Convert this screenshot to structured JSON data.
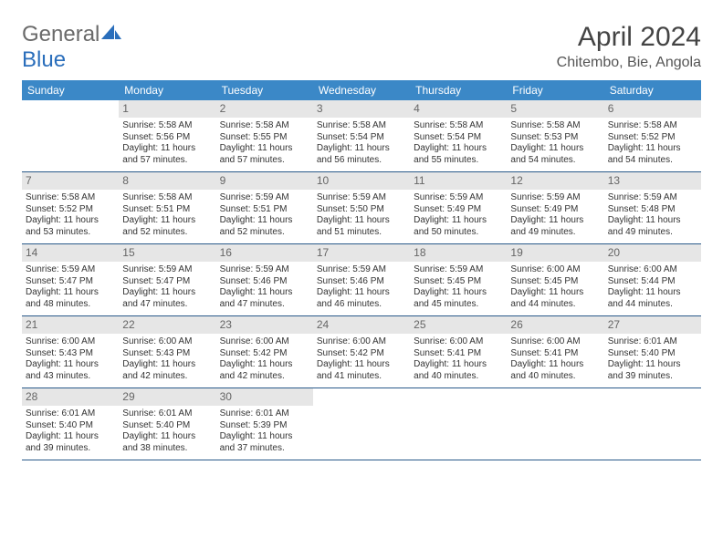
{
  "brand": {
    "part1": "General",
    "part2": "Blue"
  },
  "title": "April 2024",
  "location": "Chitembo, Bie, Angola",
  "colors": {
    "header_bg": "#3b88c7",
    "header_text": "#ffffff",
    "daynum_bg": "#e6e6e6",
    "daynum_text": "#666666",
    "rule": "#2a5a8a",
    "body_text": "#333333",
    "brand_gray": "#555555",
    "brand_blue": "#2a6ebb"
  },
  "day_names": [
    "Sunday",
    "Monday",
    "Tuesday",
    "Wednesday",
    "Thursday",
    "Friday",
    "Saturday"
  ],
  "weeks": [
    [
      null,
      {
        "n": "1",
        "sr": "5:58 AM",
        "ss": "5:56 PM",
        "dl": "11 hours and 57 minutes."
      },
      {
        "n": "2",
        "sr": "5:58 AM",
        "ss": "5:55 PM",
        "dl": "11 hours and 57 minutes."
      },
      {
        "n": "3",
        "sr": "5:58 AM",
        "ss": "5:54 PM",
        "dl": "11 hours and 56 minutes."
      },
      {
        "n": "4",
        "sr": "5:58 AM",
        "ss": "5:54 PM",
        "dl": "11 hours and 55 minutes."
      },
      {
        "n": "5",
        "sr": "5:58 AM",
        "ss": "5:53 PM",
        "dl": "11 hours and 54 minutes."
      },
      {
        "n": "6",
        "sr": "5:58 AM",
        "ss": "5:52 PM",
        "dl": "11 hours and 54 minutes."
      }
    ],
    [
      {
        "n": "7",
        "sr": "5:58 AM",
        "ss": "5:52 PM",
        "dl": "11 hours and 53 minutes."
      },
      {
        "n": "8",
        "sr": "5:58 AM",
        "ss": "5:51 PM",
        "dl": "11 hours and 52 minutes."
      },
      {
        "n": "9",
        "sr": "5:59 AM",
        "ss": "5:51 PM",
        "dl": "11 hours and 52 minutes."
      },
      {
        "n": "10",
        "sr": "5:59 AM",
        "ss": "5:50 PM",
        "dl": "11 hours and 51 minutes."
      },
      {
        "n": "11",
        "sr": "5:59 AM",
        "ss": "5:49 PM",
        "dl": "11 hours and 50 minutes."
      },
      {
        "n": "12",
        "sr": "5:59 AM",
        "ss": "5:49 PM",
        "dl": "11 hours and 49 minutes."
      },
      {
        "n": "13",
        "sr": "5:59 AM",
        "ss": "5:48 PM",
        "dl": "11 hours and 49 minutes."
      }
    ],
    [
      {
        "n": "14",
        "sr": "5:59 AM",
        "ss": "5:47 PM",
        "dl": "11 hours and 48 minutes."
      },
      {
        "n": "15",
        "sr": "5:59 AM",
        "ss": "5:47 PM",
        "dl": "11 hours and 47 minutes."
      },
      {
        "n": "16",
        "sr": "5:59 AM",
        "ss": "5:46 PM",
        "dl": "11 hours and 47 minutes."
      },
      {
        "n": "17",
        "sr": "5:59 AM",
        "ss": "5:46 PM",
        "dl": "11 hours and 46 minutes."
      },
      {
        "n": "18",
        "sr": "5:59 AM",
        "ss": "5:45 PM",
        "dl": "11 hours and 45 minutes."
      },
      {
        "n": "19",
        "sr": "6:00 AM",
        "ss": "5:45 PM",
        "dl": "11 hours and 44 minutes."
      },
      {
        "n": "20",
        "sr": "6:00 AM",
        "ss": "5:44 PM",
        "dl": "11 hours and 44 minutes."
      }
    ],
    [
      {
        "n": "21",
        "sr": "6:00 AM",
        "ss": "5:43 PM",
        "dl": "11 hours and 43 minutes."
      },
      {
        "n": "22",
        "sr": "6:00 AM",
        "ss": "5:43 PM",
        "dl": "11 hours and 42 minutes."
      },
      {
        "n": "23",
        "sr": "6:00 AM",
        "ss": "5:42 PM",
        "dl": "11 hours and 42 minutes."
      },
      {
        "n": "24",
        "sr": "6:00 AM",
        "ss": "5:42 PM",
        "dl": "11 hours and 41 minutes."
      },
      {
        "n": "25",
        "sr": "6:00 AM",
        "ss": "5:41 PM",
        "dl": "11 hours and 40 minutes."
      },
      {
        "n": "26",
        "sr": "6:00 AM",
        "ss": "5:41 PM",
        "dl": "11 hours and 40 minutes."
      },
      {
        "n": "27",
        "sr": "6:01 AM",
        "ss": "5:40 PM",
        "dl": "11 hours and 39 minutes."
      }
    ],
    [
      {
        "n": "28",
        "sr": "6:01 AM",
        "ss": "5:40 PM",
        "dl": "11 hours and 39 minutes."
      },
      {
        "n": "29",
        "sr": "6:01 AM",
        "ss": "5:40 PM",
        "dl": "11 hours and 38 minutes."
      },
      {
        "n": "30",
        "sr": "6:01 AM",
        "ss": "5:39 PM",
        "dl": "11 hours and 37 minutes."
      },
      null,
      null,
      null,
      null
    ]
  ],
  "labels": {
    "sunrise": "Sunrise:",
    "sunset": "Sunset:",
    "daylight": "Daylight:"
  }
}
